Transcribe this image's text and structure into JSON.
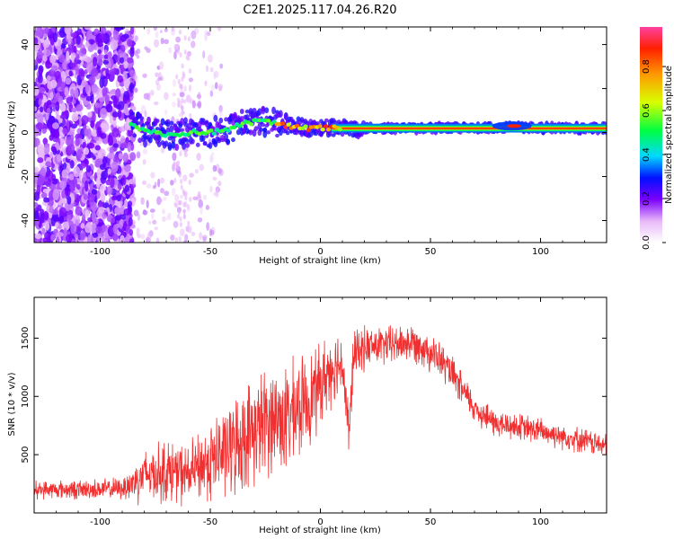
{
  "title": "C2E1.2025.117.04.26.R20",
  "chart_data": [
    {
      "type": "heatmap",
      "xlabel": "Height of straight line (km)",
      "ylabel": "Frequency (Hz)",
      "xlim": [
        -130,
        130
      ],
      "ylim": [
        -50,
        48
      ],
      "xticks": [
        -100,
        -50,
        0,
        50,
        100
      ],
      "yticks": [
        -40,
        -20,
        0,
        20,
        40
      ],
      "ridge": {
        "x": [
          -86,
          -80,
          -75,
          -70,
          -65,
          -60,
          -55,
          -50,
          -45,
          -40,
          -35,
          -30,
          -25,
          -20,
          -15,
          -10,
          -5,
          0,
          10,
          20,
          40,
          60,
          80,
          88,
          95,
          110,
          130
        ],
        "y": [
          4,
          1,
          0,
          -1,
          -1,
          0,
          0,
          0,
          1,
          2,
          4,
          5,
          5,
          4,
          3,
          3,
          2,
          2,
          2,
          2,
          2,
          2,
          2,
          3,
          2,
          2,
          2
        ]
      },
      "colorbar": {
        "label": "Normalized spectral amplitude",
        "range": [
          0,
          0.98
        ],
        "ticks": [
          "0.0",
          "0.2",
          "0.4",
          "0.6",
          "0.8"
        ]
      }
    },
    {
      "type": "line",
      "xlabel": "Height of straight line (km)",
      "ylabel": "SNR (10 * v/v)",
      "xlim": [
        -130,
        130
      ],
      "ylim": [
        0,
        1850
      ],
      "xticks": [
        -100,
        -50,
        0,
        50,
        100
      ],
      "yticks": [
        500,
        1000,
        1500
      ],
      "color": "#f03030",
      "envelope": {
        "x": [
          -130,
          -110,
          -90,
          -85,
          -80,
          -70,
          -60,
          -50,
          -40,
          -35,
          -30,
          -25,
          -20,
          -15,
          -10,
          -5,
          0,
          5,
          10,
          13,
          15,
          20,
          30,
          40,
          45,
          50,
          55,
          60,
          70,
          80,
          90,
          100,
          110,
          120,
          130
        ],
        "mean": [
          200,
          200,
          210,
          260,
          330,
          360,
          330,
          450,
          560,
          640,
          700,
          780,
          820,
          800,
          900,
          980,
          1100,
          1250,
          1300,
          650,
          1350,
          1420,
          1440,
          1460,
          1450,
          1380,
          1300,
          1180,
          900,
          760,
          740,
          700,
          660,
          620,
          570
        ],
        "amp": [
          90,
          100,
          110,
          220,
          260,
          330,
          300,
          420,
          480,
          520,
          540,
          560,
          560,
          560,
          500,
          470,
          420,
          380,
          320,
          300,
          260,
          220,
          200,
          200,
          200,
          200,
          190,
          180,
          160,
          150,
          140,
          140,
          130,
          130,
          120
        ]
      }
    }
  ]
}
